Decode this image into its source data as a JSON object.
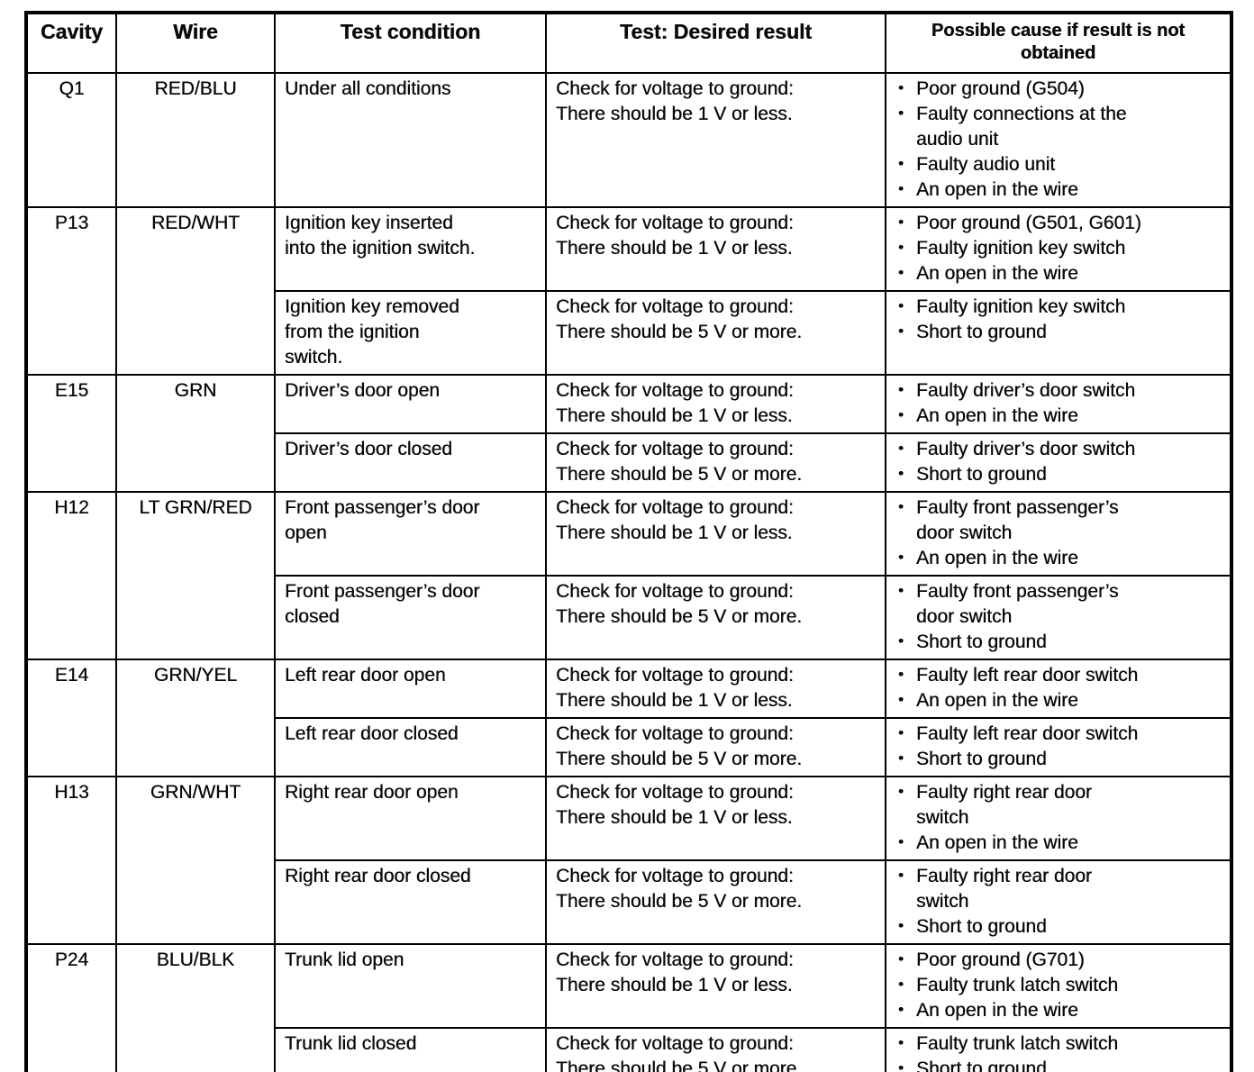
{
  "table": {
    "bullet_char": "•",
    "headers": [
      "Cavity",
      "Wire",
      "Test condition",
      "Test: Desired result",
      "Possible cause if result is not obtained"
    ],
    "groups": [
      {
        "cavity": "Q1",
        "wire": "RED/BLU",
        "tests": [
          {
            "condition": "Under all conditions",
            "result": "Check for voltage to ground:\nThere should be 1 V or less.",
            "causes": [
              "Poor ground (G504)",
              "Faulty connections at the\naudio unit",
              "Faulty audio unit",
              "An open in the wire"
            ]
          }
        ]
      },
      {
        "cavity": "P13",
        "wire": "RED/WHT",
        "tests": [
          {
            "condition": "Ignition key inserted\ninto the ignition switch.",
            "result": "Check for voltage to ground:\nThere should be 1 V or less.",
            "causes": [
              "Poor ground (G501, G601)",
              "Faulty ignition key switch",
              "An open in the wire"
            ]
          },
          {
            "condition": "Ignition key removed\nfrom the ignition\nswitch.",
            "result": "Check for voltage to ground:\nThere should be 5 V or more.",
            "causes": [
              "Faulty ignition key switch",
              "Short to ground"
            ]
          }
        ]
      },
      {
        "cavity": "E15",
        "wire": "GRN",
        "tests": [
          {
            "condition": "Driver’s door open",
            "result": "Check for voltage to ground:\nThere should be 1 V or less.",
            "causes": [
              "Faulty driver’s door switch",
              "An open in the wire"
            ]
          },
          {
            "condition": "Driver’s door closed",
            "result": "Check for voltage to ground:\nThere should be 5 V or more.",
            "causes": [
              "Faulty driver’s door switch",
              "Short to ground"
            ]
          }
        ]
      },
      {
        "cavity": "H12",
        "wire": "LT GRN/RED",
        "tests": [
          {
            "condition": "Front passenger’s door\nopen",
            "result": "Check for voltage to ground:\nThere should be 1 V or less.",
            "causes": [
              "Faulty front passenger’s\ndoor switch",
              "An open in the wire"
            ]
          },
          {
            "condition": "Front passenger’s door\nclosed",
            "result": "Check for voltage to ground:\nThere should be 5 V or more.",
            "causes": [
              "Faulty front passenger’s\ndoor switch",
              "Short to ground"
            ]
          }
        ]
      },
      {
        "cavity": "E14",
        "wire": "GRN/YEL",
        "tests": [
          {
            "condition": "Left rear door open",
            "result": "Check for voltage to ground:\nThere should be 1 V or less.",
            "causes": [
              "Faulty left rear door switch",
              "An open in the wire"
            ]
          },
          {
            "condition": "Left rear door closed",
            "result": "Check for voltage to ground:\nThere should be 5 V or more.",
            "causes": [
              "Faulty left rear door switch",
              "Short to ground"
            ]
          }
        ]
      },
      {
        "cavity": "H13",
        "wire": "GRN/WHT",
        "tests": [
          {
            "condition": "Right rear door open",
            "result": "Check for voltage to ground:\nThere should be 1 V or less.",
            "causes": [
              "Faulty right rear door\nswitch",
              "An open in the wire"
            ]
          },
          {
            "condition": "Right rear door closed",
            "result": "Check for voltage to ground:\nThere should be 5 V or more.",
            "causes": [
              "Faulty right rear door\nswitch",
              "Short to ground"
            ]
          }
        ]
      },
      {
        "cavity": "P24",
        "wire": "BLU/BLK",
        "tests": [
          {
            "condition": "Trunk lid open",
            "result": "Check for voltage to ground:\nThere should be 1 V or less.",
            "causes": [
              "Poor ground (G701)",
              "Faulty trunk latch switch",
              "An open in the wire"
            ]
          },
          {
            "condition": "Trunk lid closed",
            "result": "Check for voltage to ground:\nThere should be 5 V or more.",
            "causes": [
              "Faulty trunk latch switch",
              "Short to ground"
            ]
          }
        ]
      }
    ]
  }
}
